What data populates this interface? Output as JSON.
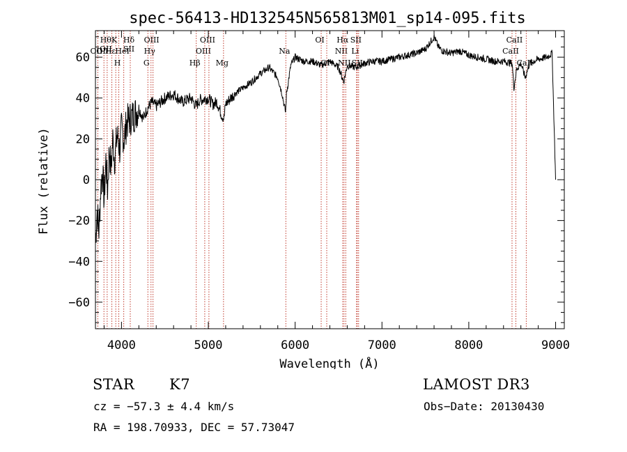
{
  "chart_data": {
    "type": "line",
    "title": "spec-56413-HD132545N565813M01_sp14-095.fits",
    "xlabel": "Wavelength (Å)",
    "ylabel": "Flux (relative)",
    "xlim": [
      3700,
      9100
    ],
    "ylim": [
      -73,
      73
    ],
    "xticks": [
      4000,
      5000,
      6000,
      7000,
      8000,
      9000
    ],
    "yticks": [
      -60,
      -40,
      -20,
      0,
      20,
      40,
      60
    ],
    "series": [
      {
        "name": "flux",
        "x": [
          3700,
          3720,
          3740,
          3760,
          3780,
          3800,
          3820,
          3840,
          3860,
          3880,
          3900,
          3920,
          3950,
          3980,
          4000,
          4030,
          4060,
          4100,
          4150,
          4200,
          4250,
          4300,
          4350,
          4400,
          4500,
          4600,
          4700,
          4800,
          4860,
          4900,
          5000,
          5050,
          5100,
          5150,
          5180,
          5200,
          5300,
          5400,
          5500,
          5600,
          5700,
          5800,
          5850,
          5890,
          5900,
          5950,
          6000,
          6100,
          6200,
          6300,
          6400,
          6500,
          6560,
          6600,
          6700,
          6800,
          6900,
          7000,
          7100,
          7200,
          7300,
          7400,
          7500,
          7550,
          7600,
          7650,
          7700,
          7800,
          7900,
          8000,
          8100,
          8200,
          8300,
          8400,
          8500,
          8520,
          8550,
          8600,
          8650,
          8700,
          8800,
          8900,
          8960,
          9000
        ],
        "y": [
          -30,
          -15,
          -25,
          -5,
          5,
          -10,
          10,
          -5,
          15,
          5,
          20,
          10,
          22,
          15,
          25,
          20,
          28,
          30,
          32,
          35,
          30,
          35,
          38,
          36,
          40,
          42,
          38,
          40,
          36,
          39,
          40,
          37,
          38,
          32,
          30,
          37,
          42,
          45,
          48,
          52,
          55,
          50,
          42,
          33,
          42,
          56,
          60,
          58,
          58,
          56,
          58,
          55,
          48,
          56,
          55,
          57,
          58,
          58,
          59,
          60,
          61,
          62,
          64,
          67,
          70,
          65,
          63,
          62,
          63,
          61,
          60,
          59,
          58,
          58,
          57,
          45,
          54,
          57,
          50,
          57,
          59,
          60,
          62,
          0
        ]
      }
    ],
    "line_markers": [
      {
        "x": 3727,
        "labels": [
          "OII"
        ],
        "row": 2
      },
      {
        "x": 3798,
        "labels": [
          "OII"
        ],
        "row": 2
      },
      {
        "x": 3835,
        "labels": [
          "Hθ",
          "OII"
        ],
        "row": 1
      },
      {
        "x": 3889,
        "labels": [
          "Hε"
        ],
        "row": 2
      },
      {
        "x": 3934,
        "labels": [
          "K"
        ],
        "row": 1
      },
      {
        "x": 3969,
        "labels": [
          "H"
        ],
        "row": 3
      },
      {
        "x": 4026,
        "labels": [
          "HeI"
        ],
        "row": 2
      },
      {
        "x": 4101,
        "labels": [
          "Hδ",
          "SII"
        ],
        "row": 1
      },
      {
        "x": 4304,
        "labels": [
          "G"
        ],
        "row": 3
      },
      {
        "x": 4340,
        "labels": [
          "Hγ"
        ],
        "row": 2
      },
      {
        "x": 4363,
        "labels": [
          "OIII"
        ],
        "row": 1
      },
      {
        "x": 4861,
        "labels": [
          "Hβ"
        ],
        "row": 3
      },
      {
        "x": 4959,
        "labels": [
          "OIII"
        ],
        "row": 2
      },
      {
        "x": 5007,
        "labels": [
          "OIII"
        ],
        "row": 1
      },
      {
        "x": 5175,
        "labels": [
          "Mg"
        ],
        "row": 3
      },
      {
        "x": 5893,
        "labels": [
          "Na"
        ],
        "row": 2
      },
      {
        "x": 6300,
        "labels": [
          "OI"
        ],
        "row": 1
      },
      {
        "x": 6364,
        "labels": [
          "OI"
        ],
        "row": 3
      },
      {
        "x": 6548,
        "labels": [
          "NII"
        ],
        "row": 2
      },
      {
        "x": 6563,
        "labels": [
          "Hα"
        ],
        "row": 1
      },
      {
        "x": 6583,
        "labels": [
          "NII"
        ],
        "row": 3
      },
      {
        "x": 6707,
        "labels": [
          "Li"
        ],
        "row": 2
      },
      {
        "x": 6716,
        "labels": [
          "SII"
        ],
        "row": 1
      },
      {
        "x": 6731,
        "labels": [
          "SII"
        ],
        "row": 3
      },
      {
        "x": 8498,
        "labels": [
          "CaII"
        ],
        "row": 2
      },
      {
        "x": 8542,
        "labels": [
          "CaII"
        ],
        "row": 1
      },
      {
        "x": 8662,
        "labels": [
          "CaII"
        ],
        "row": 3
      }
    ]
  },
  "info": {
    "class": "STAR",
    "subclass": "K7",
    "survey": "LAMOST DR3",
    "cz": "cz = −57.3 ± 4.4 km/s",
    "obs_date": "Obs−Date: 20130430",
    "coords": "RA = 198.70933, DEC =  57.73047"
  }
}
